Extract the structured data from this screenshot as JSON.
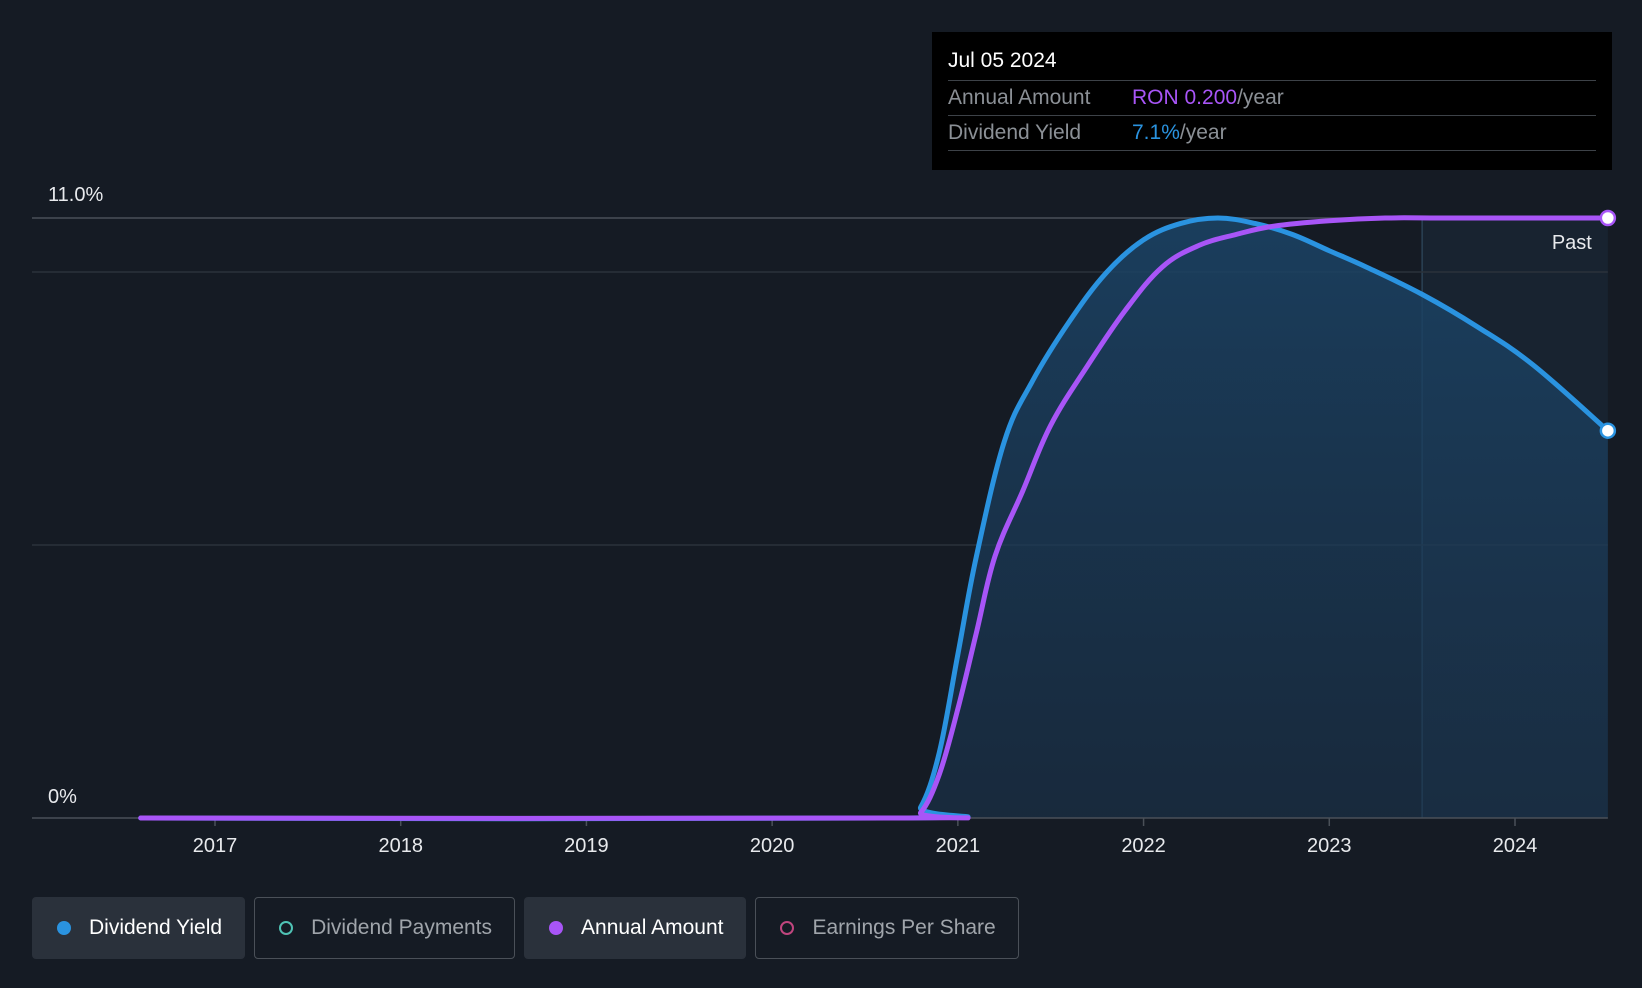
{
  "tooltip": {
    "date": "Jul 05 2024",
    "rows": [
      {
        "label": "Annual Amount",
        "value": "RON 0.200",
        "unit": "/year"
      },
      {
        "label": "Dividend Yield",
        "value": "7.1%",
        "unit": "/year"
      }
    ]
  },
  "legend": [
    {
      "label": "Dividend Yield",
      "active": true
    },
    {
      "label": "Dividend Payments",
      "active": false
    },
    {
      "label": "Annual Amount",
      "active": true
    },
    {
      "label": "Earnings Per Share",
      "active": false
    }
  ],
  "colors": {
    "dividend_yield": "#2a93e0",
    "annual_amount": "#a855f7",
    "dividend_payments": "#4fc3b5",
    "earnings_per_share": "#c0457e",
    "background": "#151b24"
  },
  "chart_data": {
    "type": "line",
    "y_tick_labels": [
      "11.0%",
      "0%"
    ],
    "ylim": [
      0,
      11.0
    ],
    "x_tick_labels": [
      "2017",
      "2018",
      "2019",
      "2020",
      "2021",
      "2022",
      "2023",
      "2024"
    ],
    "xlim": [
      2016.5,
      2024.5
    ],
    "region_label": "Past",
    "region_start": 2023.5,
    "series": [
      {
        "name": "Dividend Yield",
        "x": [
          2016.6,
          2020.7,
          2020.8,
          2020.9,
          2021.0,
          2021.1,
          2021.25,
          2021.4,
          2021.6,
          2021.8,
          2022.0,
          2022.2,
          2022.4,
          2022.6,
          2022.8,
          2023.0,
          2023.2,
          2023.5,
          2023.8,
          2024.1,
          2024.5
        ],
        "y": [
          0,
          0,
          0.2,
          1.2,
          3.0,
          4.8,
          6.9,
          8.0,
          9.1,
          10.0,
          10.6,
          10.9,
          11.0,
          10.9,
          10.7,
          10.4,
          10.1,
          9.6,
          9.0,
          8.3,
          7.1
        ]
      },
      {
        "name": "Annual Amount",
        "x": [
          2016.6,
          2020.7,
          2020.8,
          2020.9,
          2021.0,
          2021.1,
          2021.2,
          2021.35,
          2021.5,
          2021.7,
          2021.9,
          2022.1,
          2022.3,
          2022.5,
          2022.7,
          2023.0,
          2023.3,
          2023.6,
          2024.0,
          2024.5
        ],
        "y": [
          0,
          0,
          0.1,
          0.8,
          2.0,
          3.4,
          4.8,
          6.0,
          7.2,
          8.3,
          9.3,
          10.1,
          10.5,
          10.7,
          10.85,
          10.95,
          11.0,
          11.0,
          11.0,
          11.0
        ]
      }
    ]
  }
}
